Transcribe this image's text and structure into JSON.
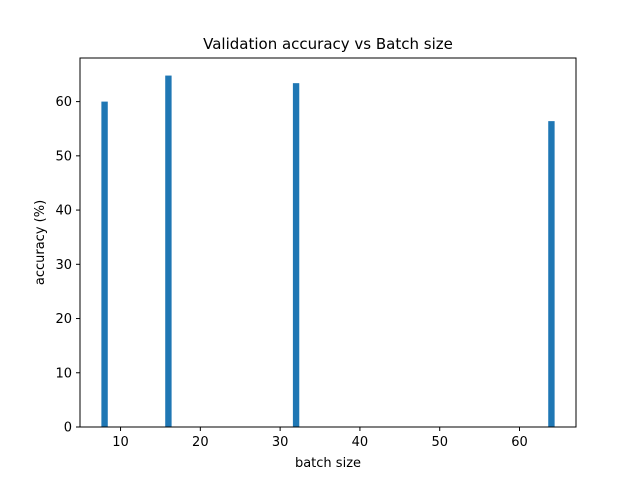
{
  "chart_data": {
    "type": "bar",
    "title": "Validation accuracy vs Batch size",
    "xlabel": "batch size",
    "ylabel": "accuracy (%)",
    "x": [
      8,
      16,
      32,
      64
    ],
    "values": [
      60.0,
      64.8,
      63.4,
      56.4
    ],
    "xlim": [
      4.92,
      67.08
    ],
    "ylim": [
      0,
      68.04
    ],
    "xticks": [
      10,
      20,
      30,
      40,
      50,
      60
    ],
    "yticks": [
      0,
      10,
      20,
      30,
      40,
      50,
      60
    ],
    "bar_color": "#1f77b4",
    "grid": false
  }
}
